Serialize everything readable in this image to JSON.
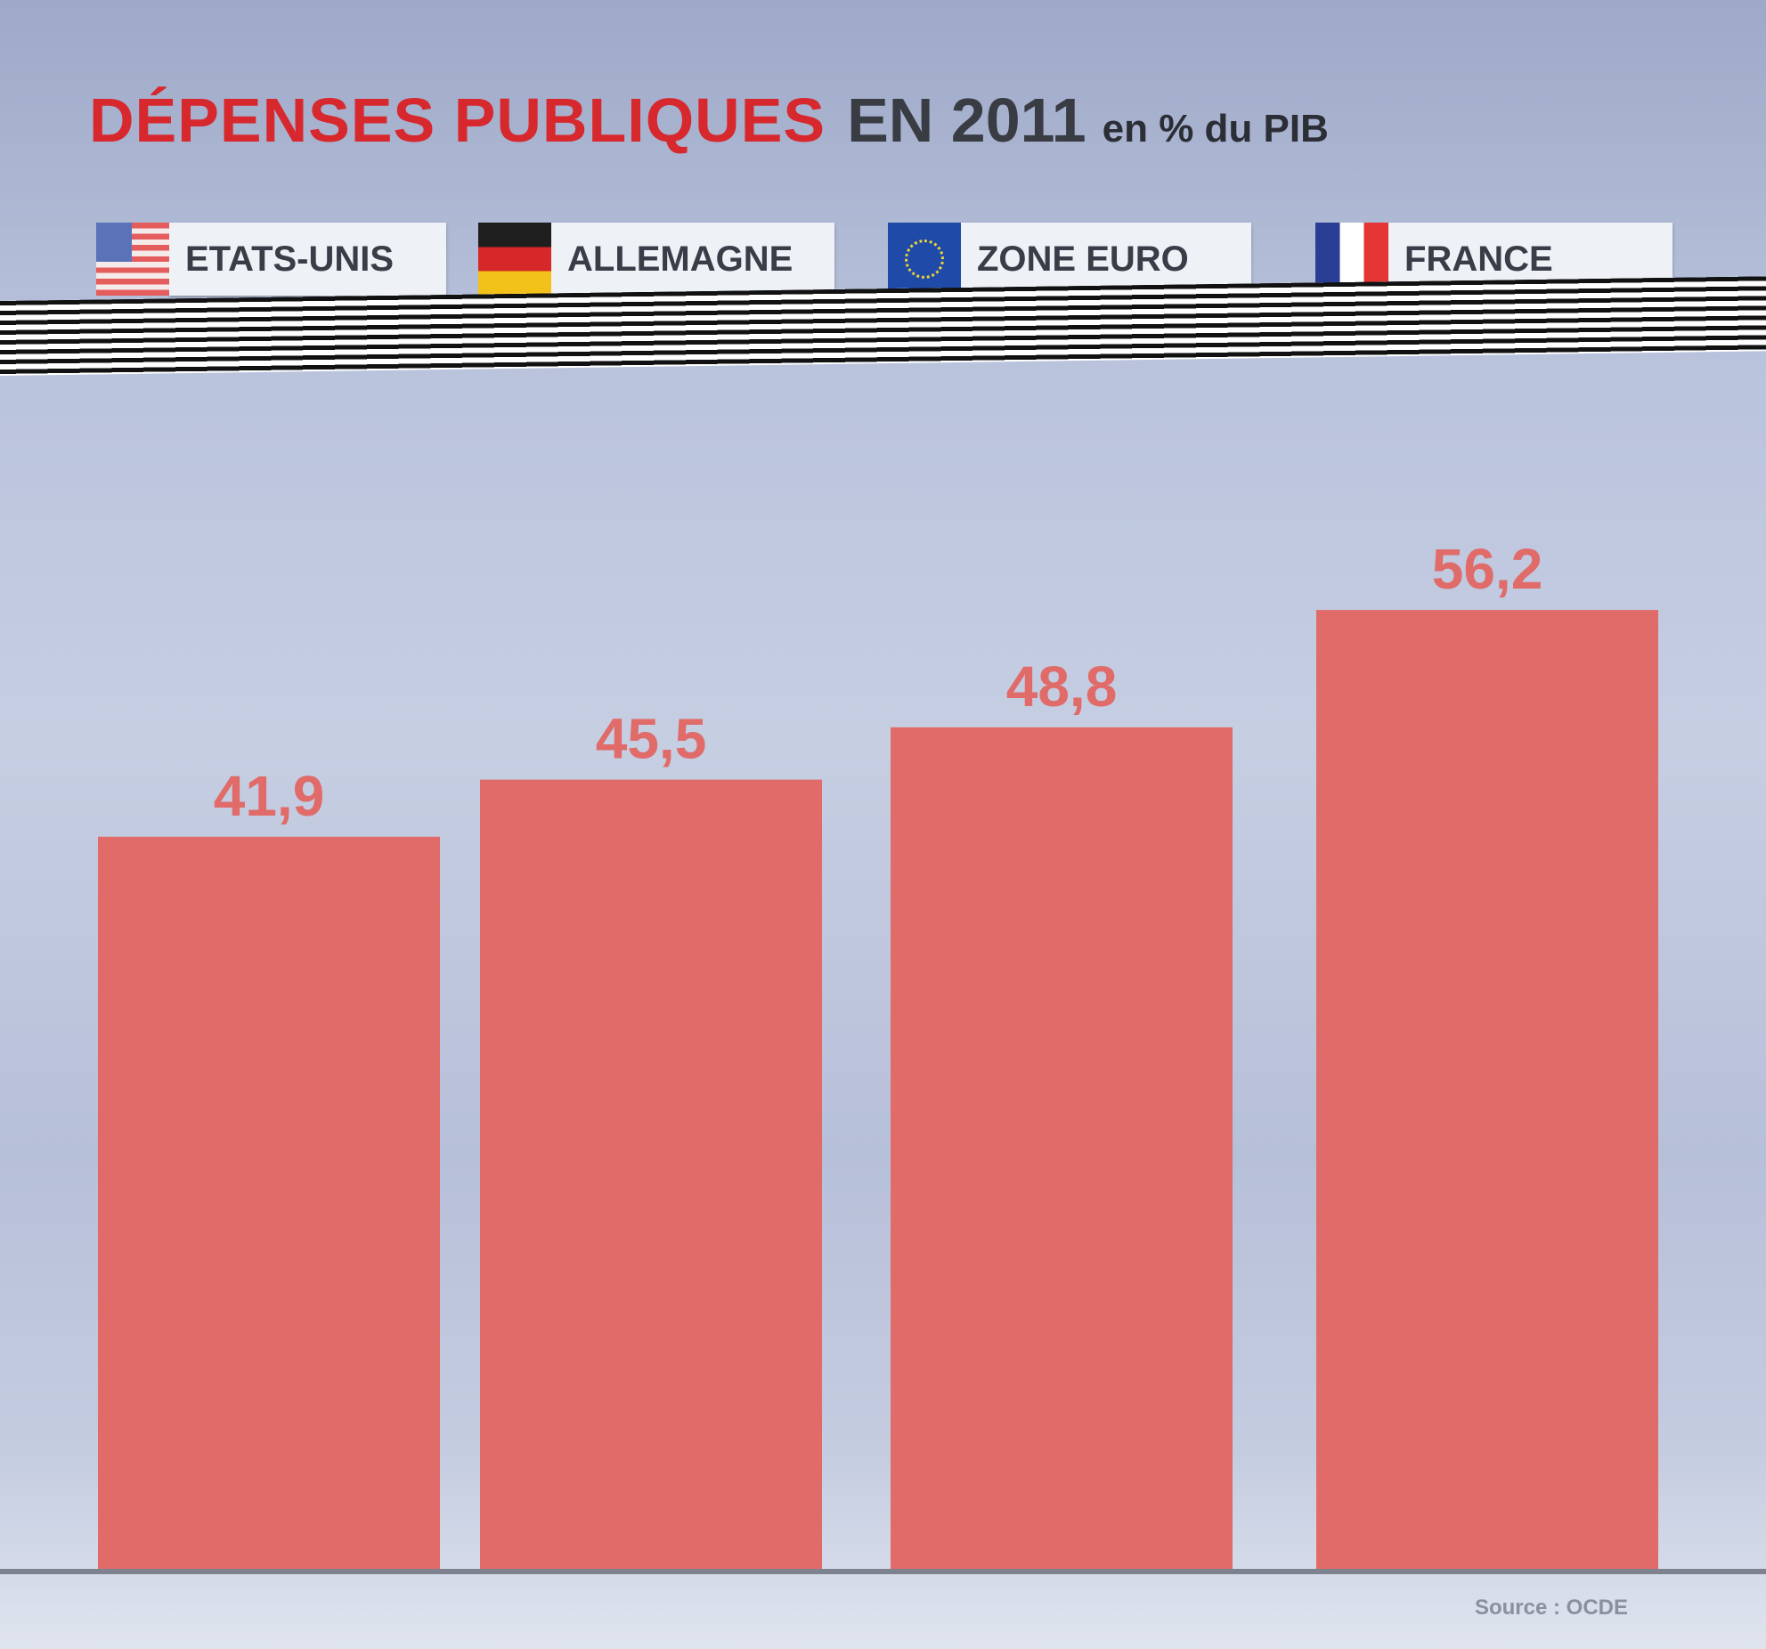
{
  "chart_data": {
    "type": "bar",
    "title": "DÉPENSES PUBLIQUES",
    "title_year": "EN 2011",
    "subtitle": "en % du PIB",
    "categories": [
      "ETATS-UNIS",
      "ALLEMAGNE",
      "ZONE EURO",
      "FRANCE"
    ],
    "values": [
      41.9,
      45.5,
      48.8,
      56.2
    ],
    "value_labels": [
      "41,9",
      "45,5",
      "48,8",
      "56,2"
    ],
    "legend": [
      {
        "label": "ETATS-UNIS",
        "flag": "us-flag-icon"
      },
      {
        "label": "ALLEMAGNE",
        "flag": "germany-flag-icon"
      },
      {
        "label": "ZONE EURO",
        "flag": "eu-flag-icon"
      },
      {
        "label": "FRANCE",
        "flag": "france-flag-icon"
      }
    ],
    "legend_placement": "top",
    "grid": false,
    "bar_color": "#e06b69",
    "source": "Source : OCDE"
  }
}
